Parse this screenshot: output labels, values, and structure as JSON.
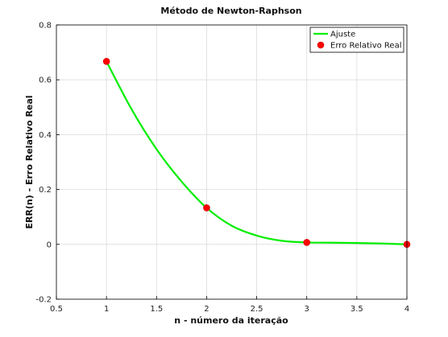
{
  "chart_data": {
    "type": "line",
    "title": "Método de Newton-Raphson",
    "xlabel": "n - número da iteração",
    "ylabel": "ERR(n) - Erro Relativo Real",
    "xlim": [
      0.5,
      4
    ],
    "ylim": [
      -0.2,
      0.8
    ],
    "xticks": [
      "0.5",
      "1",
      "1.5",
      "2",
      "2.5",
      "3",
      "3.5",
      "4"
    ],
    "yticks": [
      "-0.2",
      "0",
      "0.2",
      "0.4",
      "0.6",
      "0.8"
    ],
    "grid": true,
    "legend_position": "top-right",
    "series": [
      {
        "name": "Ajuste",
        "kind": "line",
        "color": "#00ee00",
        "x": [
          1,
          1.25,
          1.5,
          1.75,
          2,
          2.25,
          2.5,
          2.75,
          3,
          3.25,
          3.5,
          3.75,
          4
        ],
        "y": [
          0.667,
          0.493,
          0.347,
          0.229,
          0.133,
          0.068,
          0.032,
          0.013,
          0.007,
          0.006,
          0.005,
          0.003,
          0.0
        ]
      },
      {
        "name": "Erro Relativo Real",
        "kind": "scatter",
        "color": "#ff0000",
        "x": [
          1,
          2,
          3,
          4
        ],
        "y": [
          0.667,
          0.133,
          0.007,
          0.0
        ]
      }
    ]
  }
}
